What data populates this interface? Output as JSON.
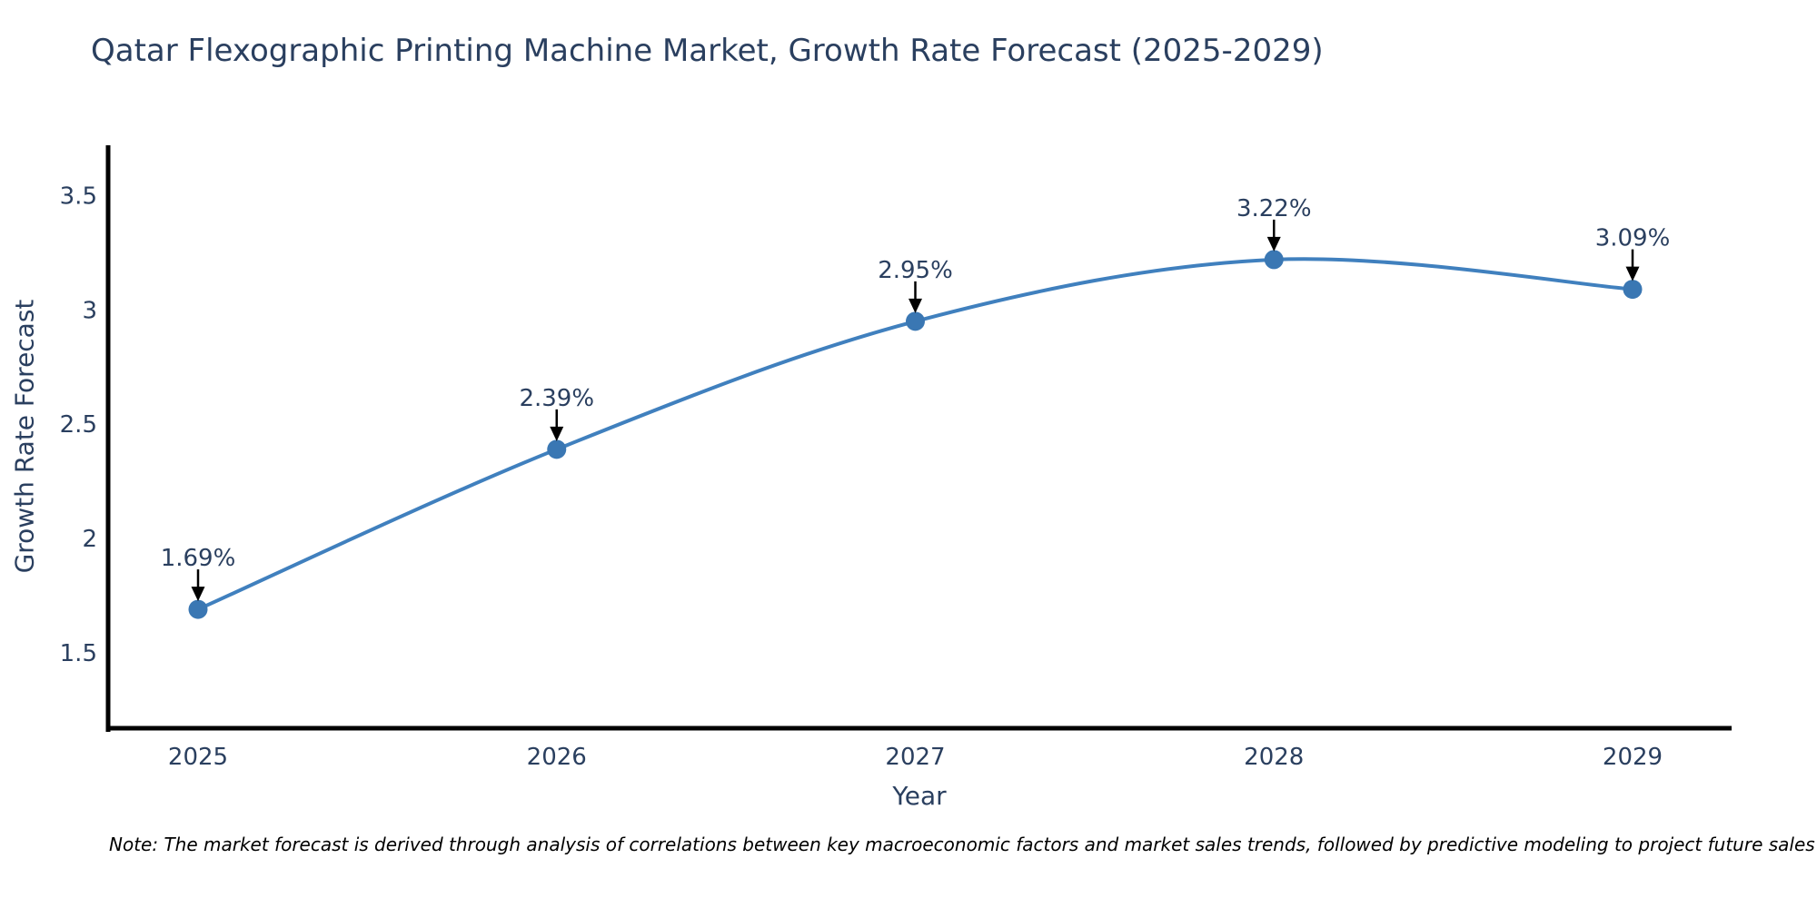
{
  "title": "Qatar Flexographic Printing Machine Market, Growth Rate Forecast (2025-2029)",
  "note": "Note: The market forecast is derived through analysis of correlations between key macroeconomic factors and market sales trends, followed by predictive modeling to project future sales",
  "chart_data": {
    "type": "line",
    "title": "Qatar Flexographic Printing Machine Market, Growth Rate Forecast (2025-2029)",
    "x": [
      "2025",
      "2026",
      "2027",
      "2028",
      "2029"
    ],
    "series": [
      {
        "name": "Growth Rate Forecast",
        "values": [
          1.69,
          2.39,
          2.95,
          3.22,
          3.09
        ]
      }
    ],
    "point_labels": [
      "1.69%",
      "2.39%",
      "2.95%",
      "3.22%",
      "3.09%"
    ],
    "xlabel": "Year",
    "ylabel": "Growth Rate Forecast",
    "yticks": [
      1.5,
      2,
      2.5,
      3,
      3.5
    ],
    "ylim": [
      1.17,
      3.72
    ],
    "grid": false,
    "legend": "none",
    "line_shape": "spline",
    "marker": "circle",
    "annotation_style": "black-down-arrow",
    "colors": {
      "line": "#4080be",
      "marker": "#3a77b3",
      "arrow": "#000000",
      "axis": "#000000",
      "tick_text": "#2a3f5f",
      "title_text": "#2a3f5f",
      "note_text": "#000000",
      "background": "#ffffff"
    }
  }
}
